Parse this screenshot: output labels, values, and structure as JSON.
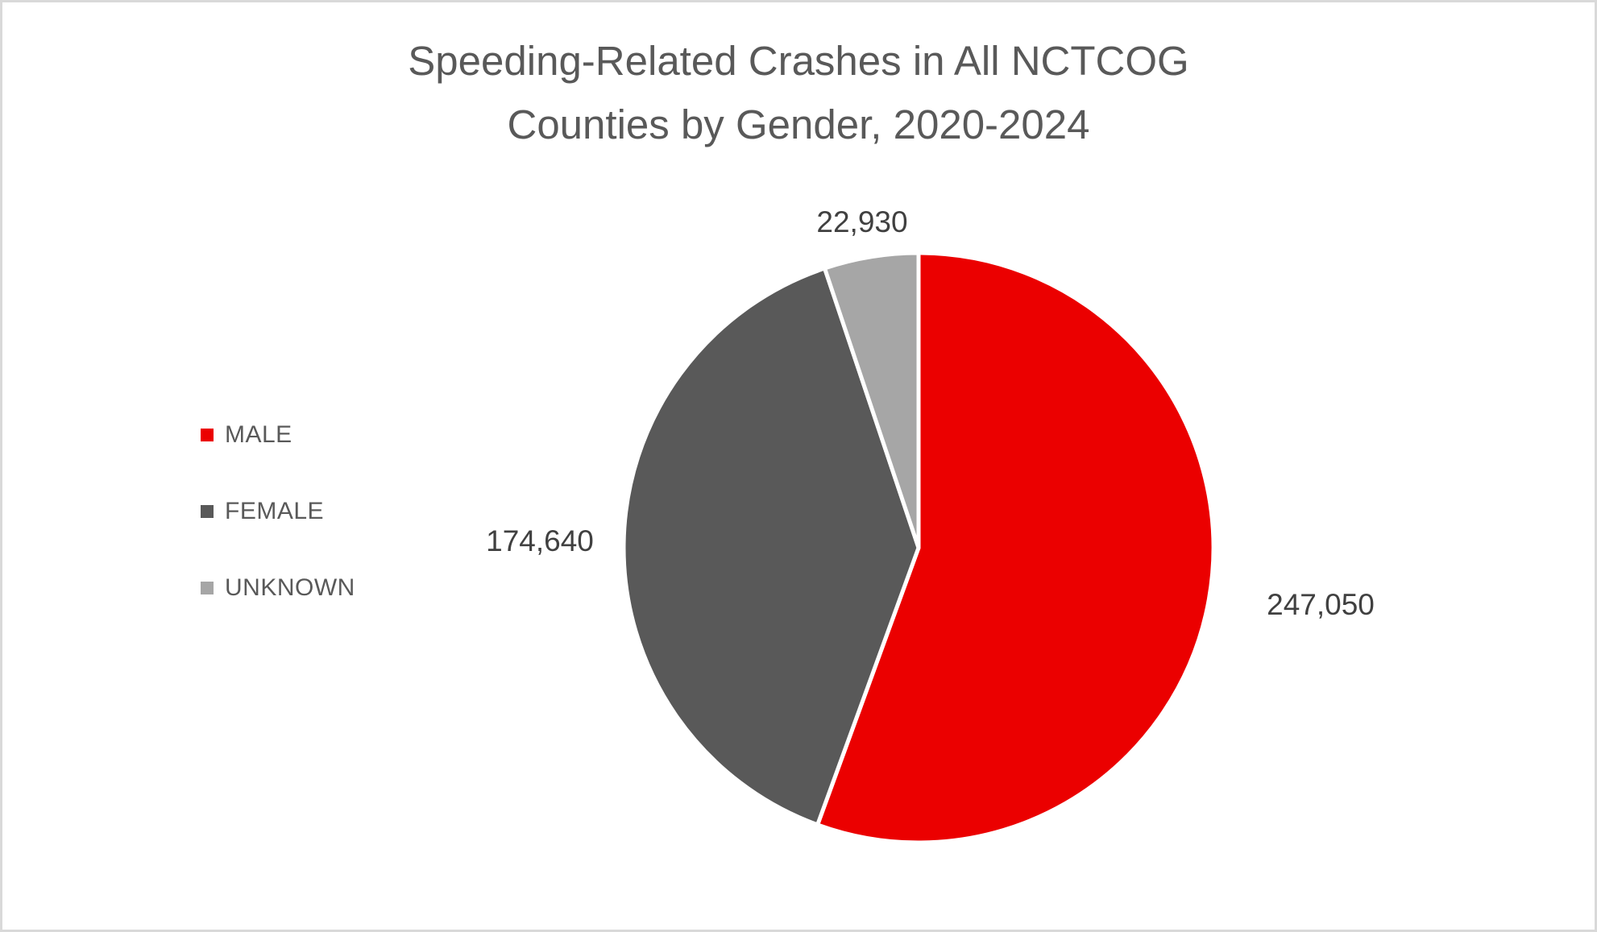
{
  "chart_data": {
    "type": "pie",
    "title": "Speeding-Related Crashes in All NCTCOG Counties by Gender, 2020-2024",
    "title_lines": [
      "Speeding-Related Crashes in All NCTCOG",
      "Counties by Gender, 2020-2024"
    ],
    "categories": [
      "MALE",
      "FEMALE",
      "UNKNOWN"
    ],
    "values": [
      247050,
      174640,
      22930
    ],
    "value_labels": [
      "247,050",
      "174,640",
      "22,930"
    ],
    "colors": [
      "#EB0000",
      "#595959",
      "#A6A6A6"
    ],
    "start_angle_deg": 0,
    "direction": "clockwise",
    "slice_border_color": "#FFFFFF",
    "legend_position": "left",
    "data_label_position": "outside-end",
    "grid": false
  },
  "styles": {
    "background": "#FFFFFF",
    "canvas_border_color": "#D9D9D9",
    "title_color": "#595959",
    "legend_text_color": "#595959",
    "data_label_color": "#404040"
  }
}
